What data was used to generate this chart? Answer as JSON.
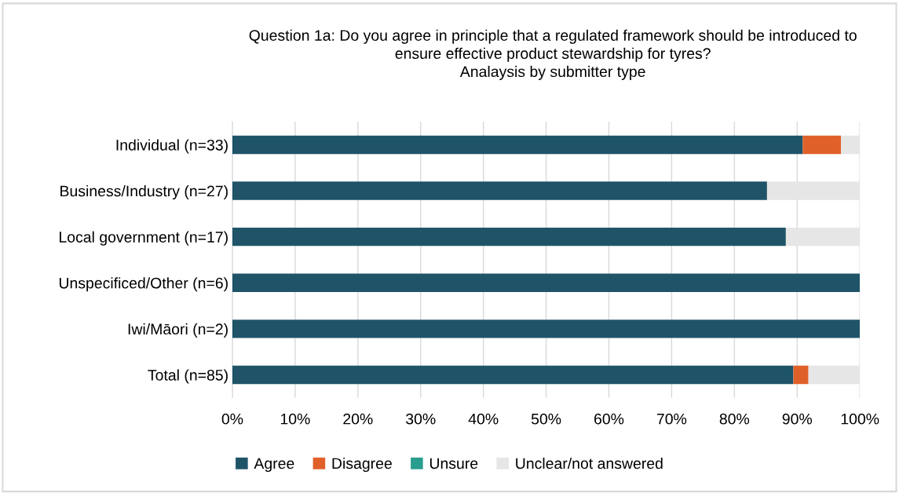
{
  "chart_data": {
    "type": "bar",
    "orientation": "horizontal",
    "stacked": true,
    "title": "Question 1a: Do you agree in principle that a regulated framework should be introduced to\nensure effective product stewardship for tyres?\nAnalaysis by submitter type",
    "categories": [
      "Individual (n=33)",
      "Business/Industry (n=27)",
      "Local government (n=17)",
      "Unspecificed/Other (n=6)",
      "Iwi/Māori (n=2)",
      "Total (n=85)"
    ],
    "series": [
      {
        "name": "Agree",
        "color": "#1f5468",
        "values": [
          90.9,
          85.2,
          88.2,
          100,
          100,
          89.4
        ]
      },
      {
        "name": "Disagree",
        "color": "#e0602a",
        "values": [
          6.1,
          0,
          0,
          0,
          0,
          2.4
        ]
      },
      {
        "name": "Unsure",
        "color": "#2a9d8f",
        "values": [
          0,
          0,
          0,
          0,
          0,
          0
        ]
      },
      {
        "name": "Unclear/not answered",
        "color": "#e6e6e6",
        "values": [
          3.0,
          14.8,
          11.8,
          0,
          0,
          8.2
        ]
      }
    ],
    "xlim": [
      0,
      100
    ],
    "xticks": [
      {
        "value": 0,
        "label": "0%"
      },
      {
        "value": 10,
        "label": "10%"
      },
      {
        "value": 20,
        "label": "20%"
      },
      {
        "value": 30,
        "label": "30%"
      },
      {
        "value": 40,
        "label": "40%"
      },
      {
        "value": 50,
        "label": "50%"
      },
      {
        "value": 60,
        "label": "60%"
      },
      {
        "value": 70,
        "label": "70%"
      },
      {
        "value": 80,
        "label": "80%"
      },
      {
        "value": 90,
        "label": "90%"
      },
      {
        "value": 100,
        "label": "100%"
      }
    ],
    "grid": "x",
    "legend": "bottom"
  }
}
